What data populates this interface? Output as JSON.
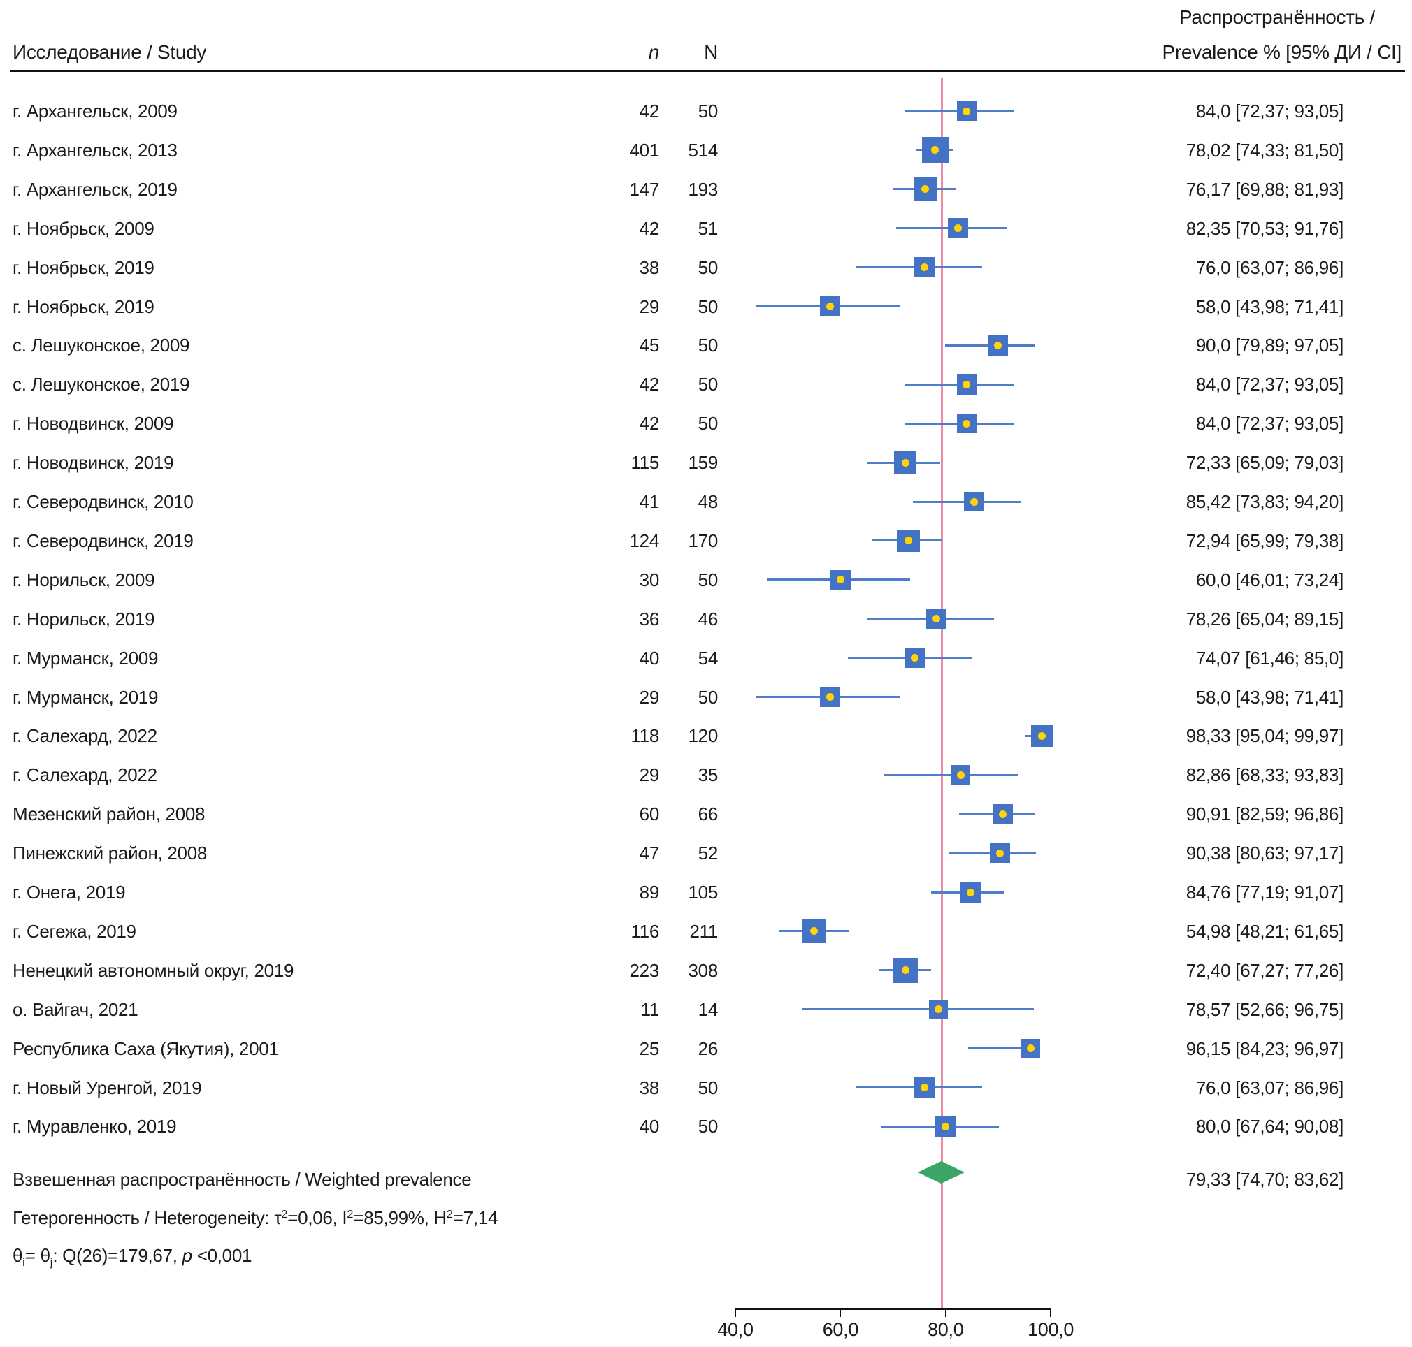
{
  "header": {
    "study_label": "Исследование / Study",
    "n_label": "n",
    "N_label": "N",
    "prevalence_label_line1": "Распространённость /",
    "prevalence_label_line2": "Prevalence % [95% ДИ / CI]"
  },
  "colors": {
    "marker_blue": "#4472c4",
    "ci_line_blue": "#4f7dc9",
    "dot_yellow": "#ffd400",
    "reference_pink": "#ec8aa4",
    "diamond_green": "#3aa568",
    "axis_black": "#111111",
    "text": "#1b1b1b"
  },
  "chart_data": {
    "type": "scatter",
    "variant": "forest_plot",
    "xlim": [
      40,
      100
    ],
    "axis": {
      "tick_values": [
        40,
        60,
        80,
        100
      ],
      "tick_labels": [
        "40,0",
        "60,0",
        "80,0",
        "100,0"
      ]
    },
    "reference_line_value": 79.33,
    "studies": [
      {
        "label": "г. Архангельск, 2009",
        "n": "42",
        "N": "50",
        "est": 84.0,
        "lo": 72.37,
        "hi": 93.05,
        "display": "84,0 [72,37; 93,05]"
      },
      {
        "label": "г. Архангельск, 2013",
        "n": "401",
        "N": "514",
        "est": 78.02,
        "lo": 74.33,
        "hi": 81.5,
        "display": "78,02 [74,33; 81,50]"
      },
      {
        "label": "г. Архангельск, 2019",
        "n": "147",
        "N": "193",
        "est": 76.17,
        "lo": 69.88,
        "hi": 81.93,
        "display": "76,17 [69,88; 81,93]"
      },
      {
        "label": "г. Ноябрьск, 2009",
        "n": "42",
        "N": "51",
        "est": 82.35,
        "lo": 70.53,
        "hi": 91.76,
        "display": "82,35 [70,53; 91,76]"
      },
      {
        "label": "г. Ноябрьск, 2019",
        "n": "38",
        "N": "50",
        "est": 76.0,
        "lo": 63.07,
        "hi": 86.96,
        "display": "76,0 [63,07; 86,96]"
      },
      {
        "label": "г. Ноябрьск, 2019",
        "n": "29",
        "N": "50",
        "est": 58.0,
        "lo": 43.98,
        "hi": 71.41,
        "display": "58,0 [43,98; 71,41]"
      },
      {
        "label": "с. Лешуконское, 2009",
        "n": "45",
        "N": "50",
        "est": 90.0,
        "lo": 79.89,
        "hi": 97.05,
        "display": "90,0 [79,89; 97,05]"
      },
      {
        "label": "с. Лешуконское, 2019",
        "n": "42",
        "N": "50",
        "est": 84.0,
        "lo": 72.37,
        "hi": 93.05,
        "display": "84,0 [72,37; 93,05]"
      },
      {
        "label": "г. Новодвинск, 2009",
        "n": "42",
        "N": "50",
        "est": 84.0,
        "lo": 72.37,
        "hi": 93.05,
        "display": "84,0 [72,37; 93,05]"
      },
      {
        "label": "г. Новодвинск, 2019",
        "n": "115",
        "N": "159",
        "est": 72.33,
        "lo": 65.09,
        "hi": 79.03,
        "display": "72,33 [65,09; 79,03]"
      },
      {
        "label": "г. Северодвинск, 2010",
        "n": "41",
        "N": "48",
        "est": 85.42,
        "lo": 73.83,
        "hi": 94.2,
        "display": "85,42 [73,83; 94,20]"
      },
      {
        "label": "г. Северодвинск, 2019",
        "n": "124",
        "N": "170",
        "est": 72.94,
        "lo": 65.99,
        "hi": 79.38,
        "display": "72,94 [65,99; 79,38]"
      },
      {
        "label": "г. Норильск, 2009",
        "n": "30",
        "N": "50",
        "est": 60.0,
        "lo": 46.01,
        "hi": 73.24,
        "display": "60,0 [46,01; 73,24]"
      },
      {
        "label": "г. Норильск, 2019",
        "n": "36",
        "N": "46",
        "est": 78.26,
        "lo": 65.04,
        "hi": 89.15,
        "display": "78,26 [65,04; 89,15]"
      },
      {
        "label": "г. Мурманск, 2009",
        "n": "40",
        "N": "54",
        "est": 74.07,
        "lo": 61.46,
        "hi": 85.0,
        "display": "74,07 [61,46; 85,0]"
      },
      {
        "label": "г. Мурманск, 2019",
        "n": "29",
        "N": "50",
        "est": 58.0,
        "lo": 43.98,
        "hi": 71.41,
        "display": "58,0 [43,98; 71,41]"
      },
      {
        "label": "г. Салехард, 2022",
        "n": "118",
        "N": "120",
        "est": 98.33,
        "lo": 95.04,
        "hi": 99.97,
        "display": "98,33 [95,04; 99,97]"
      },
      {
        "label": "г. Салехард, 2022",
        "n": "29",
        "N": "35",
        "est": 82.86,
        "lo": 68.33,
        "hi": 93.83,
        "display": "82,86 [68,33; 93,83]"
      },
      {
        "label": "Мезенский район, 2008",
        "n": "60",
        "N": "66",
        "est": 90.91,
        "lo": 82.59,
        "hi": 96.86,
        "display": "90,91 [82,59; 96,86]"
      },
      {
        "label": "Пинежский район, 2008",
        "n": "47",
        "N": "52",
        "est": 90.38,
        "lo": 80.63,
        "hi": 97.17,
        "display": "90,38 [80,63; 97,17]"
      },
      {
        "label": "г. Онега, 2019",
        "n": "89",
        "N": "105",
        "est": 84.76,
        "lo": 77.19,
        "hi": 91.07,
        "display": "84,76 [77,19; 91,07]"
      },
      {
        "label": "г. Сегежа, 2019",
        "n": "116",
        "N": "211",
        "est": 54.98,
        "lo": 48.21,
        "hi": 61.65,
        "display": "54,98 [48,21; 61,65]"
      },
      {
        "label": "Ненецкий автономный округ, 2019",
        "n": "223",
        "N": "308",
        "est": 72.4,
        "lo": 67.27,
        "hi": 77.26,
        "display": "72,40 [67,27; 77,26]"
      },
      {
        "label": "о. Вайгач, 2021",
        "n": "11",
        "N": "14",
        "est": 78.57,
        "lo": 52.66,
        "hi": 96.75,
        "display": "78,57 [52,66; 96,75]"
      },
      {
        "label": "Республика Саха (Якутия), 2001",
        "n": "25",
        "N": "26",
        "est": 96.15,
        "lo": 84.23,
        "hi": 96.97,
        "display": "96,15 [84,23; 96,97]"
      },
      {
        "label": "г. Новый Уренгой, 2019",
        "n": "38",
        "N": "50",
        "est": 76.0,
        "lo": 63.07,
        "hi": 86.96,
        "display": "76,0 [63,07; 86,96]"
      },
      {
        "label": "г. Муравленко, 2019",
        "n": "40",
        "N": "50",
        "est": 80.0,
        "lo": 67.64,
        "hi": 90.08,
        "display": "80,0 [67,64; 90,08]"
      }
    ],
    "summary": {
      "label": "Взвешенная распространённость / Weighted prevalence",
      "est": 79.33,
      "lo": 74.7,
      "hi": 83.62,
      "display": "79,33 [74,70; 83,62]"
    },
    "heterogeneity": {
      "text": "Гетерогенность / Heterogeneity: τ²=0,06, I²=85,99%, H²=7,14",
      "segments": [
        {
          "t": "Гетерогенность / Heterogeneity: τ"
        },
        {
          "t": "2",
          "sup": true
        },
        {
          "t": "=0,06, I"
        },
        {
          "t": "2",
          "sup": true
        },
        {
          "t": "=85,99%, H"
        },
        {
          "t": "2",
          "sup": true
        },
        {
          "t": "=7,14"
        }
      ]
    },
    "q_test": {
      "text": "θᵢ= θⱼ: Q(26)=179,67, p <0,001",
      "segments": [
        {
          "t": "θ"
        },
        {
          "t": "i",
          "sub": true
        },
        {
          "t": "= θ"
        },
        {
          "t": "j",
          "sub": true
        },
        {
          "t": ": Q(26)=179,67, "
        },
        {
          "t": "p",
          "italic": true
        },
        {
          "t": " <0,001"
        }
      ]
    }
  }
}
